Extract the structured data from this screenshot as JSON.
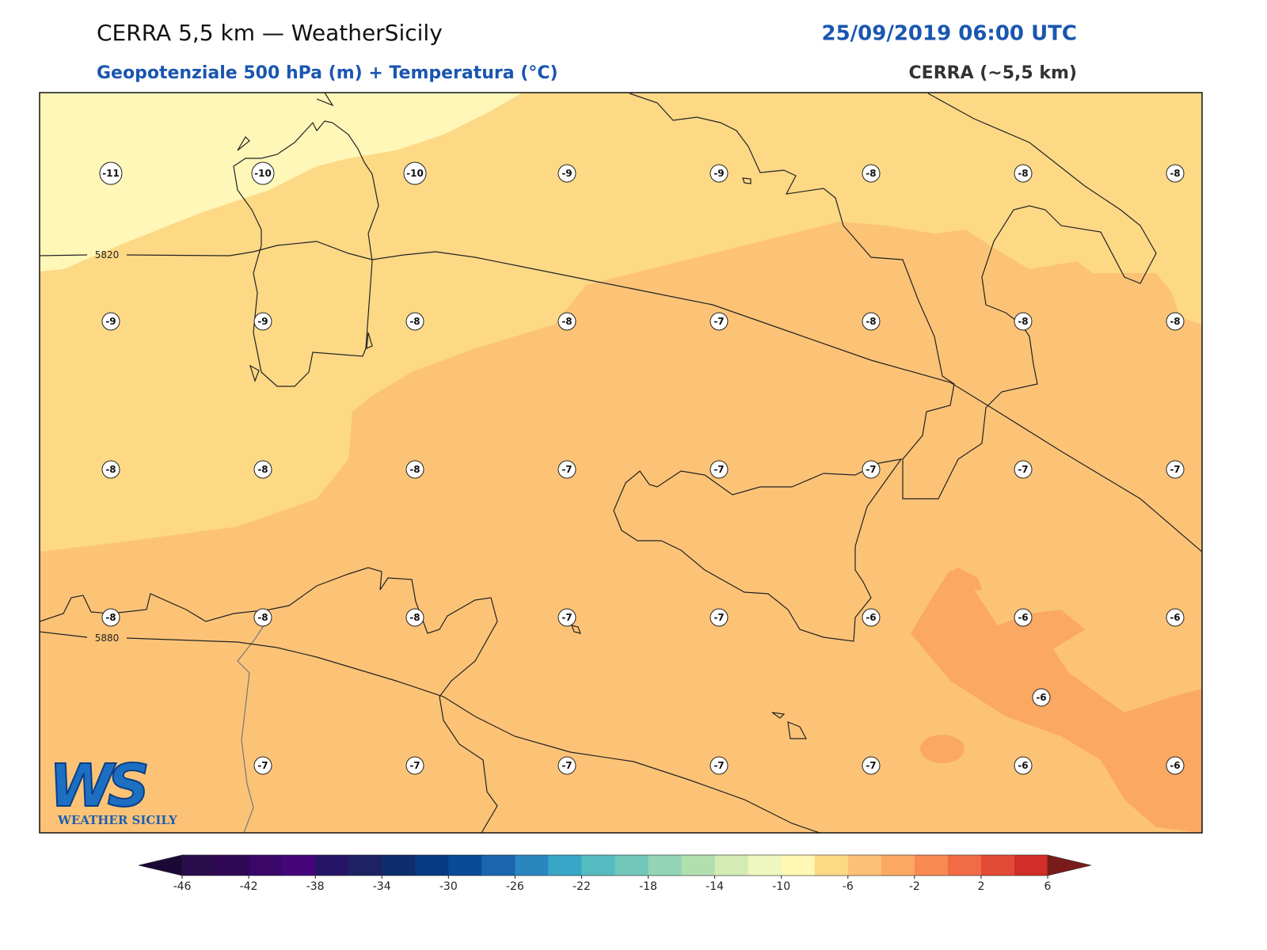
{
  "header": {
    "title": "CERRA 5,5 km — WeatherSicily",
    "datetime": "25/09/2019 06:00 UTC",
    "subtitle": "Geopotenziale 500 hPa (m) + Temperatura (°C)",
    "model": "CERRA (~5,5 km)"
  },
  "map": {
    "contour_labels": [
      5820,
      5880
    ],
    "temperature_labels": [
      [
        -11,
        -10,
        -10,
        -9,
        -9,
        -8,
        -8,
        -8
      ],
      [
        -9,
        -9,
        -8,
        -8,
        -7,
        -8,
        -8,
        -8
      ],
      [
        -8,
        -8,
        -8,
        -7,
        -7,
        -7,
        -7,
        -7
      ],
      [
        -8,
        -8,
        -8,
        -7,
        -7,
        -6,
        -6,
        -6
      ],
      [
        null,
        -7,
        -7,
        -7,
        -7,
        -7,
        -6,
        -6
      ]
    ],
    "extra_temperature_label": -6
  },
  "logo": {
    "mark": "WS",
    "name": "WEATHER SICILY"
  },
  "colorbar": {
    "ticks": [
      -46,
      -42,
      -38,
      -34,
      -30,
      -26,
      -22,
      -18,
      -14,
      -10,
      -6,
      -2,
      2,
      6
    ],
    "colors": [
      "#2a0b4c",
      "#2f0755",
      "#3a0768",
      "#45067a",
      "#261567",
      "#1d2264",
      "#0e2d6c",
      "#083a84",
      "#0a4b98",
      "#1a66ae",
      "#2a86be",
      "#38a6c7",
      "#55bbc0",
      "#72c7bb",
      "#92d4b5",
      "#b2dfb0",
      "#d2ecb4",
      "#eef7bd",
      "#fff7b3",
      "#fdd986",
      "#fcc176",
      "#fba862",
      "#f88a51",
      "#f16c44",
      "#e24b35",
      "#d22d28"
    ],
    "under_color": "#1c0836",
    "over_color": "#7a1b1b"
  }
}
